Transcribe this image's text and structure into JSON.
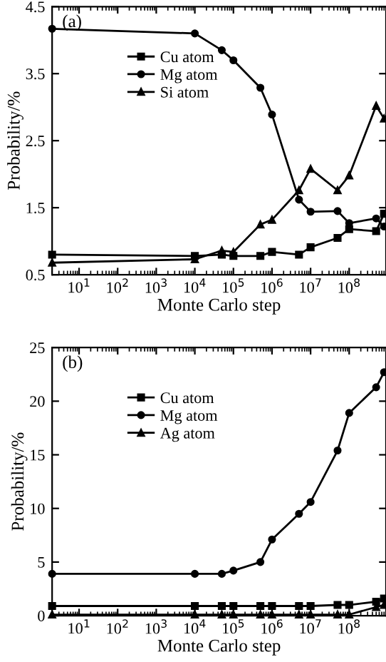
{
  "chart_data": [
    {
      "type": "line",
      "title": "(a)",
      "xlabel": "Monte Carlo step",
      "ylabel": "Probability/%",
      "log": "x",
      "grid": false,
      "legend": "top left",
      "x": [
        2,
        10000,
        50000,
        100000,
        500000,
        1000000,
        5000000,
        10000000,
        50000000,
        100000000,
        500000000,
        800000000
      ],
      "xlim": [
        2,
        900000000
      ],
      "xticks": [
        {
          "value": 10,
          "label": "10$^{1}$"
        },
        {
          "value": 100,
          "label": "10$^{2}$"
        },
        {
          "value": 1000,
          "label": "10$^{3}$"
        },
        {
          "value": 10000,
          "label": "10$^{4}$"
        },
        {
          "value": 100000,
          "label": "10$^{5}$"
        },
        {
          "value": 1000000,
          "label": "10$^{6}$"
        },
        {
          "value": 10000000,
          "label": "10$^{7}$"
        },
        {
          "value": 100000000,
          "label": "10$^{8}$"
        }
      ],
      "ylim": [
        0.5,
        4.5
      ],
      "yticks": [
        0.5,
        1.5,
        2.5,
        3.5,
        4.5
      ],
      "series": [
        {
          "name": "Cu atom",
          "color": "#000000",
          "marker": "square",
          "values": [
            0.8,
            0.78,
            0.8,
            0.78,
            0.78,
            0.84,
            0.8,
            0.91,
            1.05,
            1.18,
            1.15,
            1.41
          ]
        },
        {
          "name": "Mg atom",
          "color": "#000000",
          "marker": "circle",
          "values": [
            4.17,
            4.1,
            3.85,
            3.7,
            3.29,
            2.89,
            1.62,
            1.44,
            1.45,
            1.27,
            1.34,
            1.22
          ]
        },
        {
          "name": "Si atom",
          "color": "#000000",
          "marker": "triangle",
          "values": [
            0.68,
            0.73,
            0.86,
            0.84,
            1.25,
            1.32,
            1.76,
            2.08,
            1.76,
            1.98,
            3.02,
            2.83
          ]
        }
      ]
    },
    {
      "type": "line",
      "title": "(b)",
      "xlabel": "Monte Carlo step",
      "ylabel": "Probability/%",
      "log": "x",
      "grid": false,
      "legend": "top left",
      "x": [
        2,
        10000,
        50000,
        100000,
        500000,
        1000000,
        5000000,
        10000000,
        50000000,
        100000000,
        500000000,
        800000000
      ],
      "xlim": [
        2,
        900000000
      ],
      "xticks": [
        {
          "value": 10,
          "label": "10$^{1}$"
        },
        {
          "value": 100,
          "label": "10$^{2}$"
        },
        {
          "value": 1000,
          "label": "10$^{3}$"
        },
        {
          "value": 10000,
          "label": "10$^{4}$"
        },
        {
          "value": 100000,
          "label": "10$^{5}$"
        },
        {
          "value": 1000000,
          "label": "10$^{6}$"
        },
        {
          "value": 10000000,
          "label": "10$^{7}$"
        },
        {
          "value": 100000000,
          "label": "10$^{8}$"
        }
      ],
      "ylim": [
        0,
        25
      ],
      "yticks": [
        0,
        5,
        10,
        15,
        20,
        25
      ],
      "series": [
        {
          "name": "Cu atom",
          "color": "#000000",
          "marker": "square",
          "values": [
            0.9,
            0.9,
            0.9,
            0.9,
            0.9,
            0.9,
            0.9,
            0.9,
            1.0,
            1.0,
            1.3,
            1.6
          ]
        },
        {
          "name": "Mg atom",
          "color": "#000000",
          "marker": "circle",
          "values": [
            3.9,
            3.9,
            3.9,
            4.2,
            5.0,
            7.1,
            9.5,
            10.6,
            15.4,
            18.9,
            21.3,
            22.7
          ]
        },
        {
          "name": "Ag atom",
          "color": "#000000",
          "marker": "triangle",
          "values": [
            0.1,
            0.1,
            0.1,
            0.1,
            0.1,
            0.1,
            0.1,
            0.1,
            0.1,
            0.1,
            0.8,
            1.0
          ]
        }
      ]
    }
  ]
}
